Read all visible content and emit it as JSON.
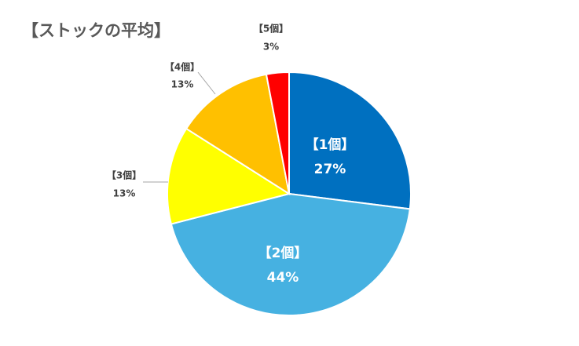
{
  "chart_data": {
    "type": "pie",
    "title": "【ストックの平均】",
    "categories": [
      "【1個】",
      "【2個】",
      "【3個】",
      "【4個】",
      "【5個】"
    ],
    "values": [
      27,
      44,
      13,
      13,
      3
    ],
    "value_labels": [
      "27%",
      "44%",
      "13%",
      "13%",
      "3%"
    ],
    "colors": [
      "#0070c0",
      "#46b1e1",
      "#ffff00",
      "#ffc000",
      "#ff0000"
    ]
  }
}
